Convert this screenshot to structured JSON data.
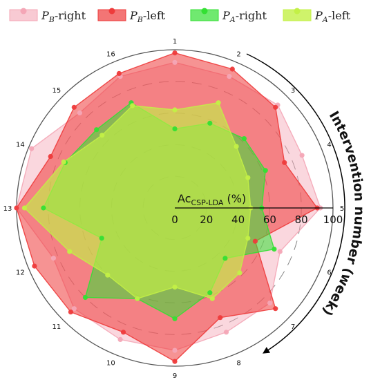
{
  "chart_data": {
    "type": "radar",
    "spokes": [
      "1",
      "2",
      "3",
      "4",
      "5",
      "6",
      "7",
      "8",
      "9",
      "10",
      "11",
      "12",
      "13",
      "14",
      "15",
      "16"
    ],
    "r_range": [
      0,
      100
    ],
    "r_ticks": [
      "0",
      "20",
      "40",
      "60",
      "80",
      "100"
    ],
    "r_label_main": "Ac",
    "r_label_sub": "CSP-LDA",
    "r_label_unit": " (%)",
    "arc_title": "Intervention number (week)",
    "legend_position": "top",
    "series": [
      {
        "name_main": "P",
        "name_sub": "B",
        "name_suffix": "-right",
        "color": "#f4a6b6",
        "opacity": 0.45,
        "values": [
          92,
          90,
          92,
          87,
          92,
          72,
          85,
          85,
          90,
          90,
          90,
          83,
          100,
          98,
          85,
          90
        ]
      },
      {
        "name_main": "P",
        "name_sub": "B",
        "name_suffix": "-left",
        "color": "#ee3b3b",
        "opacity": 0.55,
        "values": [
          98,
          95,
          90,
          75,
          90,
          55,
          90,
          75,
          97,
          85,
          93,
          96,
          100,
          85,
          90,
          92
        ]
      },
      {
        "name_main": "P",
        "name_sub": "A",
        "name_suffix": "-right",
        "color": "#33e033",
        "opacity": 0.55,
        "values": [
          50,
          58,
          62,
          62,
          55,
          68,
          45,
          58,
          70,
          62,
          80,
          50,
          83,
          75,
          70,
          72
        ]
      },
      {
        "name_main": "P",
        "name_sub": "A",
        "name_suffix": "-left",
        "color": "#c3f046",
        "opacity": 0.65,
        "values": [
          62,
          72,
          55,
          50,
          48,
          50,
          58,
          62,
          50,
          62,
          60,
          72,
          95,
          76,
          65,
          70
        ]
      }
    ]
  }
}
